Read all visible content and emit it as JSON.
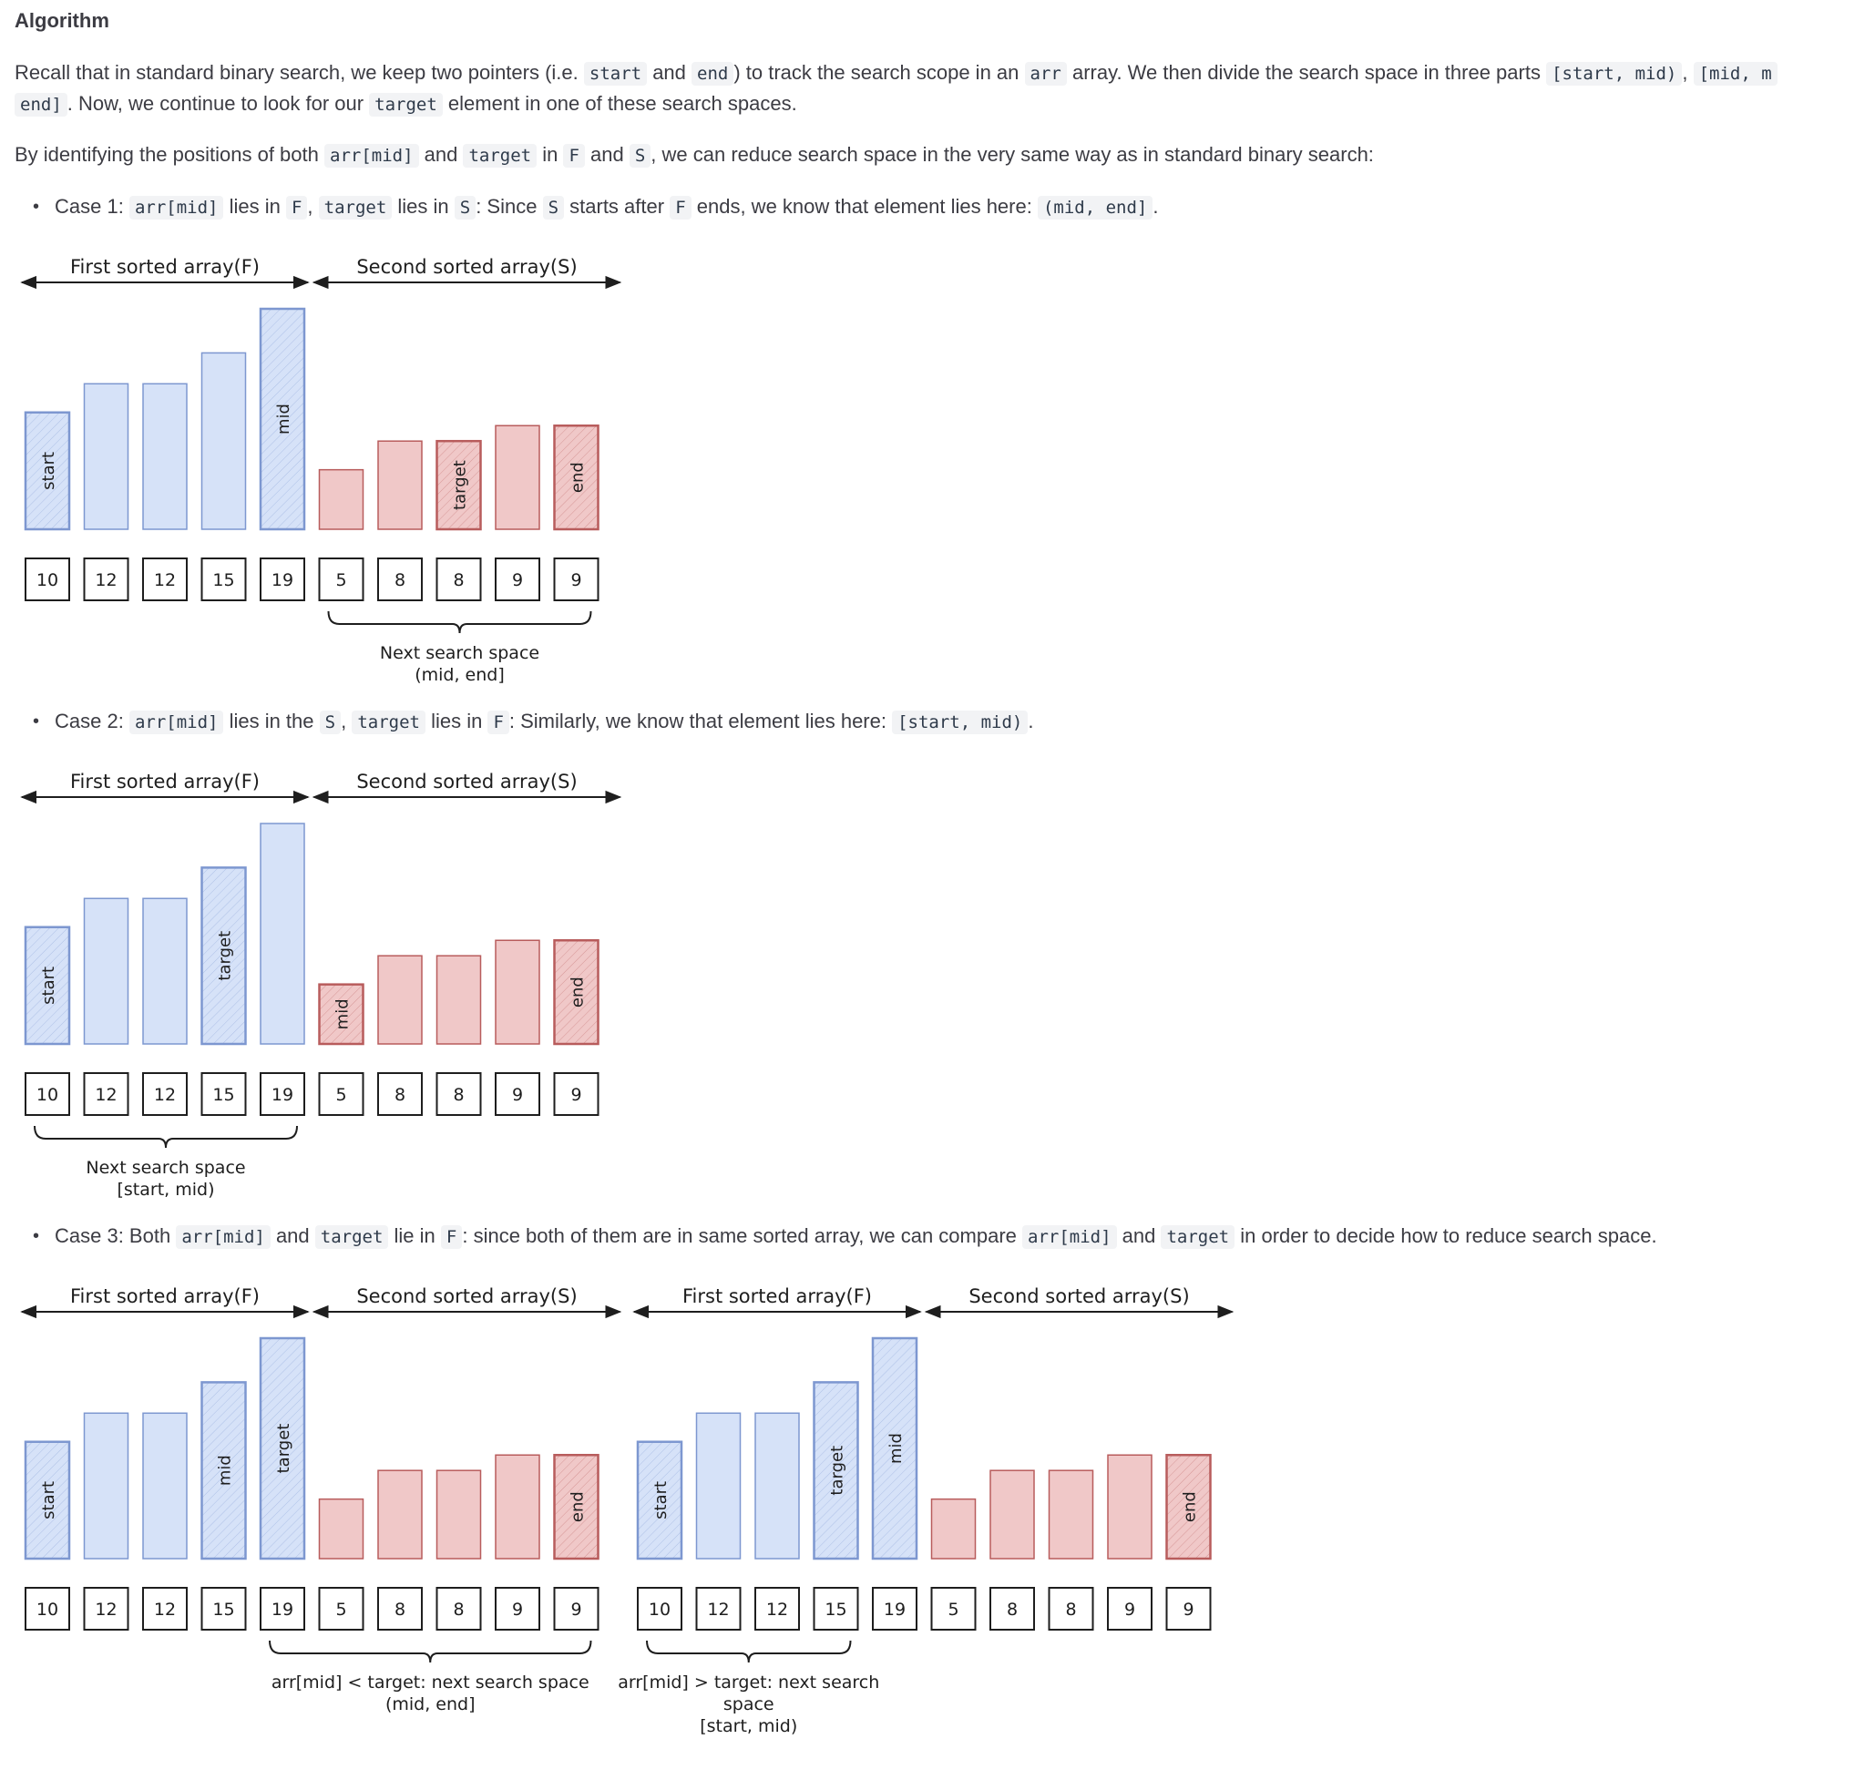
{
  "heading": "Algorithm",
  "p1": {
    "l1_a": "Recall that in standard binary search, we keep two pointers (i.e. ",
    "c_start": "start",
    "l1_b": " and ",
    "c_end": "end",
    "l1_c": ") to track the search scope in an ",
    "c_arr": "arr",
    "l1_d": " array. We then divide the search space in three parts ",
    "c_part1": "[start, mid)",
    "l1_e": ", ",
    "c_part2a": "[mid, m",
    "c_part2b": "end]",
    "l2": ". Now, we continue to look for our ",
    "c_target": "target",
    "l2_b": " element in one of these search spaces."
  },
  "p2": {
    "a": "By identifying the positions of both ",
    "c_arrmid": "arr[mid]",
    "b": " and ",
    "c_target": "target",
    "c": " in ",
    "c_F": "F",
    "d": " and ",
    "c_S": "S",
    "e": ", we can reduce search space in the very same way as in standard binary search:"
  },
  "case1": {
    "a": "Case 1: ",
    "c_arrmid": "arr[mid]",
    "b": " lies in ",
    "c_F": "F",
    "c": ", ",
    "c_target": "target",
    "d": " lies in ",
    "c_S": "S",
    "e": ": Since ",
    "c_S2": "S",
    "f": " starts after ",
    "c_F2": "F",
    "g": " ends, we know that element lies here: ",
    "c_range": "(mid, end]",
    "h": "."
  },
  "case2": {
    "a": "Case 2: ",
    "c_arrmid": "arr[mid]",
    "b": " lies in the ",
    "c_S": "S",
    "c": ", ",
    "c_target": "target",
    "d": " lies in ",
    "c_F": "F",
    "e": ": Similarly, we know that element lies here: ",
    "c_range": "[start, mid)",
    "f": "."
  },
  "case3": {
    "a": "Case 3: Both ",
    "c_arrmid": "arr[mid]",
    "b": " and ",
    "c_target": "target",
    "c": " lie in ",
    "c_F": "F",
    "d": ": since both of them are in same sorted array, we can compare ",
    "c_arrmid2": "arr[mid]",
    "e": " and ",
    "c_target2": "target",
    "f": " in order to decide how to reduce search space."
  },
  "diagram_common": {
    "first_label": "First sorted array(F)",
    "second_label": "Second sorted array(S)",
    "values": [
      "10",
      "12",
      "12",
      "15",
      "19",
      "5",
      "8",
      "8",
      "9",
      "9"
    ],
    "bar_levels": [
      0.53,
      0.66,
      0.66,
      0.8,
      1.0,
      0.27,
      0.4,
      0.4,
      0.47,
      0.47
    ],
    "colors": {
      "blue_fill": "#d6e2f8",
      "blue_stroke": "#7d97d0",
      "red_fill": "#f0c8c8",
      "red_stroke": "#b85c5c",
      "text": "#1e1e1e"
    }
  },
  "diagram1": {
    "bar_tags": [
      "start",
      "",
      "",
      "",
      "mid",
      "",
      "",
      "target",
      "",
      "end"
    ],
    "caption_line1": "Next search space",
    "caption_line2": "(mid, end]"
  },
  "diagram2": {
    "bar_tags": [
      "start",
      "",
      "",
      "target",
      "",
      "mid",
      "",
      "",
      "",
      "end"
    ],
    "caption_line1": "Next search space",
    "caption_line2": "[start, mid)"
  },
  "diagram3a": {
    "bar_tags": [
      "start",
      "",
      "",
      "mid",
      "target",
      "",
      "",
      "",
      "",
      "end"
    ],
    "caption_line1": "arr[mid] < target: next search space",
    "caption_line2": "(mid, end]"
  },
  "diagram3b": {
    "bar_tags": [
      "start",
      "",
      "",
      "target",
      "mid",
      "",
      "",
      "",
      "",
      "end"
    ],
    "caption_line1": "arr[mid] > target: next search",
    "caption_line2": "space",
    "caption_line3": "[start, mid)"
  }
}
